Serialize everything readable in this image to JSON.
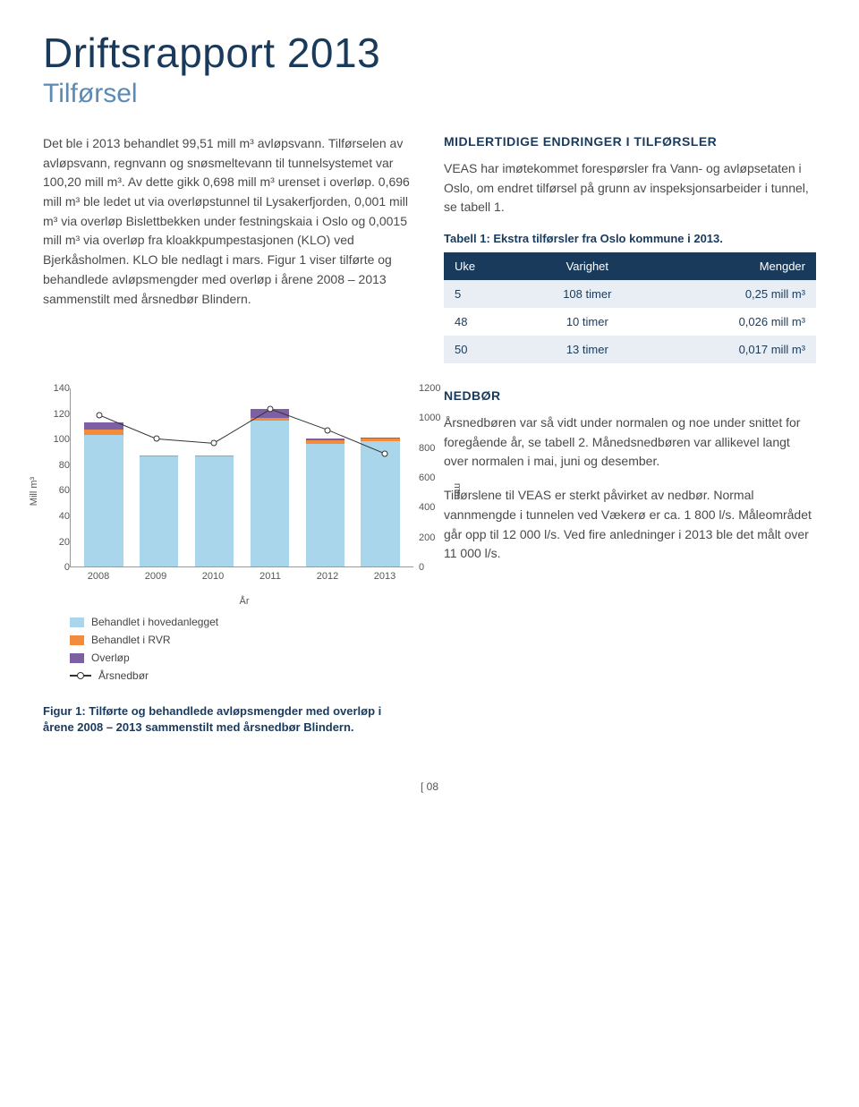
{
  "header": {
    "title": "Driftsrapport 2013",
    "subtitle": "Tilførsel"
  },
  "left_col": {
    "paragraph": "Det ble i 2013 behandlet 99,51 mill m³ avløpsvann. Tilførselen av avløpsvann, regnvann og snøsmeltevann til tunnelsystemet var 100,20 mill m³. Av dette gikk 0,698 mill m³ urenset i overløp. 0,696 mill m³ ble ledet ut via overløpstunnel til Lysakerfjorden, 0,001 mill m³ via overløp Bislettbekken under festningskaia i Oslo og 0,0015 mill m³ via overløp fra kloakkpumpestasjonen (KLO) ved Bjerkåsholmen. KLO ble nedlagt i mars. Figur 1 viser tilførte og behandlede avløpsmengder med overløp i årene 2008 – 2013 sammenstilt med årsnedbør Blindern."
  },
  "right_col": {
    "heading1": "MIDLERTIDIGE ENDRINGER I TILFØRSLER",
    "para1": "VEAS har imøtekommet forespørsler fra Vann- og avløpsetaten i Oslo, om endret tilførsel på grunn av inspeksjonsarbeider i tunnel, se tabell 1.",
    "table1_caption": "Tabell 1: Ekstra tilførsler fra Oslo kommune i 2013.",
    "table1": {
      "columns": [
        "Uke",
        "Varighet",
        "Mengder"
      ],
      "rows": [
        [
          "5",
          "108 timer",
          "0,25 mill m³"
        ],
        [
          "48",
          "10 timer",
          "0,026 mill m³"
        ],
        [
          "50",
          "13 timer",
          "0,017 mill m³"
        ]
      ]
    },
    "heading2": "NEDBØR",
    "para2": "Årsnedbøren var så vidt under normalen og noe under snittet for foregående år, se tabell 2. Månedsnedbøren var allikevel langt over normalen i mai, juni og desember.",
    "para3": "Tilførslene til VEAS er sterkt påvirket av nedbør. Normal vannmengde i tunnelen ved Vækerø er ca. 1 800 l/s. Måleområdet går opp til 12 000 l/s. Ved fire anledninger i 2013 ble det målt over 11 000 l/s."
  },
  "chart": {
    "type": "bar+line",
    "categories": [
      "2008",
      "2009",
      "2010",
      "2011",
      "2012",
      "2013"
    ],
    "series": {
      "hovedanlegget": {
        "label": "Behandlet i hovedanlegget",
        "color": "#a9d6ea",
        "values": [
          103,
          86,
          86,
          114,
          96,
          98
        ]
      },
      "rvr": {
        "label": "Behandlet i RVR",
        "color": "#f28c3c",
        "values": [
          4,
          1,
          1,
          2,
          3,
          2
        ]
      },
      "overlop": {
        "label": "Overløp",
        "color": "#7d5fa3",
        "values": [
          6,
          0,
          0,
          7,
          1,
          1
        ]
      }
    },
    "line": {
      "label": "Årsnedbør",
      "color": "#333333",
      "values": [
        1020,
        860,
        830,
        1060,
        920,
        760
      ]
    },
    "y_left": {
      "label": "Mill m³",
      "max": 140,
      "ticks": [
        0,
        20,
        40,
        60,
        80,
        100,
        120,
        140
      ]
    },
    "y_right": {
      "label": "mm",
      "max": 1200,
      "ticks": [
        0,
        200,
        400,
        600,
        800,
        1000,
        1200
      ]
    },
    "x_label": "År",
    "bar_width": 0.7
  },
  "figure_caption": "Figur 1: Tilførte og behandlede avløpsmengder med overløp i årene 2008 – 2013 sammenstilt med årsnedbør Blindern.",
  "page_number": "[ 08"
}
